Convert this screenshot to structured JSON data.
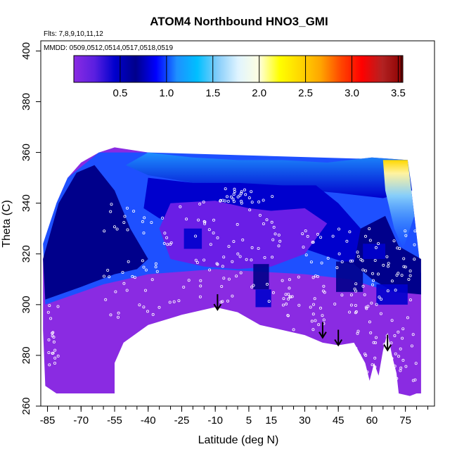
{
  "chart_data": {
    "type": "heatmap",
    "title": "ATOM4 Northbound HNO3_GMI",
    "notes": {
      "flights": "Flts: 7,8,9,10,11,12",
      "dates": "MMDD: 0509,0512,0514,0517,0518,0519"
    },
    "xlabel": "Latitude (deg N)",
    "ylabel": "Theta (C)",
    "xlim": [
      -88,
      88
    ],
    "ylim": [
      260,
      404
    ],
    "x_ticks": [
      -85,
      -70,
      -55,
      -40,
      -25,
      -10,
      5,
      15,
      30,
      45,
      60,
      75
    ],
    "x_tick_labels": [
      "-85",
      "-70",
      "-55",
      "-40",
      "-25",
      "-10",
      "5",
      "15",
      "30",
      "45",
      "60",
      "75"
    ],
    "y_ticks": [
      260,
      280,
      300,
      320,
      340,
      360,
      380,
      400
    ],
    "y_tick_labels": [
      "260",
      "280",
      "300",
      "320",
      "340",
      "360",
      "380",
      "400"
    ],
    "colorbar": {
      "range": [
        0,
        3.55
      ],
      "ticks": [
        0.5,
        1.0,
        1.5,
        2.0,
        2.5,
        3.0,
        3.5
      ],
      "tick_labels": [
        "0.5",
        "1.0",
        "1.5",
        "2.0",
        "2.5",
        "3.0",
        "3.5"
      ],
      "colors": [
        "#8a2be2",
        "#5a1fe0",
        "#0000cd",
        "#00008b",
        "#0000ff",
        "#1e90ff",
        "#00bfff",
        "#87cefa",
        "#e0f4ff",
        "#ffffe0",
        "#ffff00",
        "#ffd700",
        "#ffa500",
        "#ff4500",
        "#ff0000",
        "#b22222",
        "#8b0000"
      ]
    },
    "field_colors": {
      "low": "#8a2be2",
      "low_mid": "#6a1ee6",
      "mid": "#0000cd",
      "deep": "#00008b",
      "blue": "#1e50ff",
      "light": "#1e90ff",
      "sky": "#87cefa",
      "high": "#ffd700"
    },
    "arrow_latitudes": [
      -9,
      38,
      45,
      67
    ],
    "arrow_theta_tips": [
      298,
      287,
      284,
      282
    ],
    "sample_point_color": "#ffffff"
  }
}
